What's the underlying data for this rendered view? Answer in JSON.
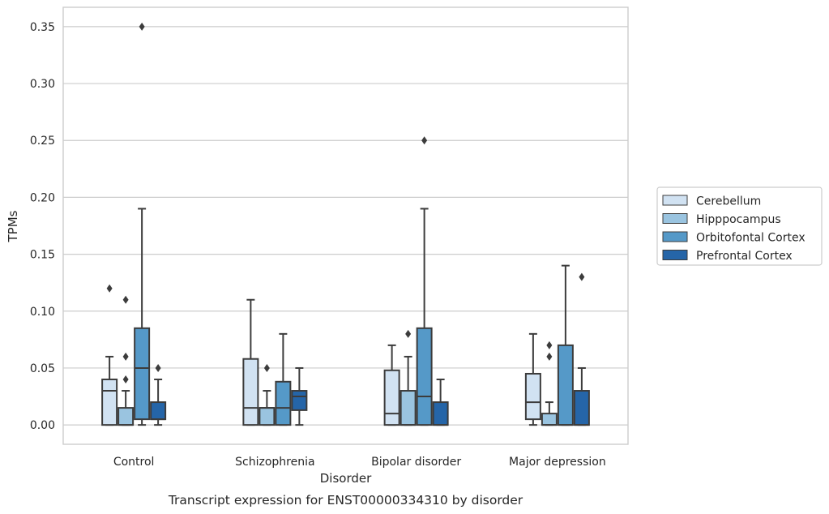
{
  "caption": "Transcript expression for ENST00000334310 by disorder",
  "chart_data": {
    "type": "box",
    "title": "",
    "xlabel": "Disorder",
    "ylabel": "TPMs",
    "ylim": [
      -0.017,
      0.367
    ],
    "yticks": [
      0.0,
      0.05,
      0.1,
      0.15,
      0.2,
      0.25,
      0.3,
      0.35
    ],
    "ytick_labels": [
      "0.00",
      "0.05",
      "0.10",
      "0.15",
      "0.20",
      "0.25",
      "0.30",
      "0.35"
    ],
    "grid": "horizontal",
    "legend_position": "right",
    "categories": [
      "Control",
      "Schizophrenia",
      "Bipolar disorder",
      "Major depression"
    ],
    "series": [
      {
        "name": "Cerebellum",
        "color": "#d1e2f2",
        "boxes": [
          {
            "whisker_low": 0.0,
            "q1": 0.0,
            "median": 0.03,
            "q3": 0.04,
            "whisker_high": 0.06,
            "outliers": [
              0.12
            ]
          },
          {
            "whisker_low": 0.0,
            "q1": 0.0,
            "median": 0.015,
            "q3": 0.058,
            "whisker_high": 0.11,
            "outliers": []
          },
          {
            "whisker_low": 0.0,
            "q1": 0.0,
            "median": 0.01,
            "q3": 0.048,
            "whisker_high": 0.07,
            "outliers": []
          },
          {
            "whisker_low": 0.0,
            "q1": 0.005,
            "median": 0.02,
            "q3": 0.045,
            "whisker_high": 0.08,
            "outliers": []
          }
        ]
      },
      {
        "name": "Hipppocampus",
        "color": "#9ac4e0",
        "boxes": [
          {
            "whisker_low": 0.0,
            "q1": 0.0,
            "median": 0.0,
            "q3": 0.015,
            "whisker_high": 0.03,
            "outliers": [
              0.04,
              0.06,
              0.11
            ]
          },
          {
            "whisker_low": 0.0,
            "q1": 0.0,
            "median": 0.015,
            "q3": 0.015,
            "whisker_high": 0.03,
            "outliers": [
              0.05
            ]
          },
          {
            "whisker_low": 0.0,
            "q1": 0.0,
            "median": 0.0,
            "q3": 0.03,
            "whisker_high": 0.06,
            "outliers": [
              0.08
            ]
          },
          {
            "whisker_low": 0.0,
            "q1": 0.0,
            "median": 0.0,
            "q3": 0.01,
            "whisker_high": 0.02,
            "outliers": [
              0.06,
              0.07
            ]
          }
        ]
      },
      {
        "name": "Orbitofontal Cortex",
        "color": "#5599c8",
        "boxes": [
          {
            "whisker_low": 0.0,
            "q1": 0.005,
            "median": 0.05,
            "q3": 0.085,
            "whisker_high": 0.19,
            "outliers": [
              0.35
            ]
          },
          {
            "whisker_low": 0.0,
            "q1": 0.0,
            "median": 0.015,
            "q3": 0.038,
            "whisker_high": 0.08,
            "outliers": []
          },
          {
            "whisker_low": 0.0,
            "q1": 0.0,
            "median": 0.025,
            "q3": 0.085,
            "whisker_high": 0.19,
            "outliers": [
              0.25
            ]
          },
          {
            "whisker_low": 0.0,
            "q1": 0.0,
            "median": 0.0,
            "q3": 0.07,
            "whisker_high": 0.14,
            "outliers": []
          }
        ]
      },
      {
        "name": "Prefrontal Cortex",
        "color": "#2565a8",
        "boxes": [
          {
            "whisker_low": 0.0,
            "q1": 0.005,
            "median": 0.005,
            "q3": 0.02,
            "whisker_high": 0.04,
            "outliers": [
              0.05
            ]
          },
          {
            "whisker_low": 0.0,
            "q1": 0.013,
            "median": 0.025,
            "q3": 0.03,
            "whisker_high": 0.05,
            "outliers": []
          },
          {
            "whisker_low": 0.0,
            "q1": 0.0,
            "median": 0.0,
            "q3": 0.02,
            "whisker_high": 0.04,
            "outliers": []
          },
          {
            "whisker_low": 0.0,
            "q1": 0.0,
            "median": 0.0,
            "q3": 0.03,
            "whisker_high": 0.05,
            "outliers": [
              0.13
            ]
          }
        ]
      }
    ]
  }
}
